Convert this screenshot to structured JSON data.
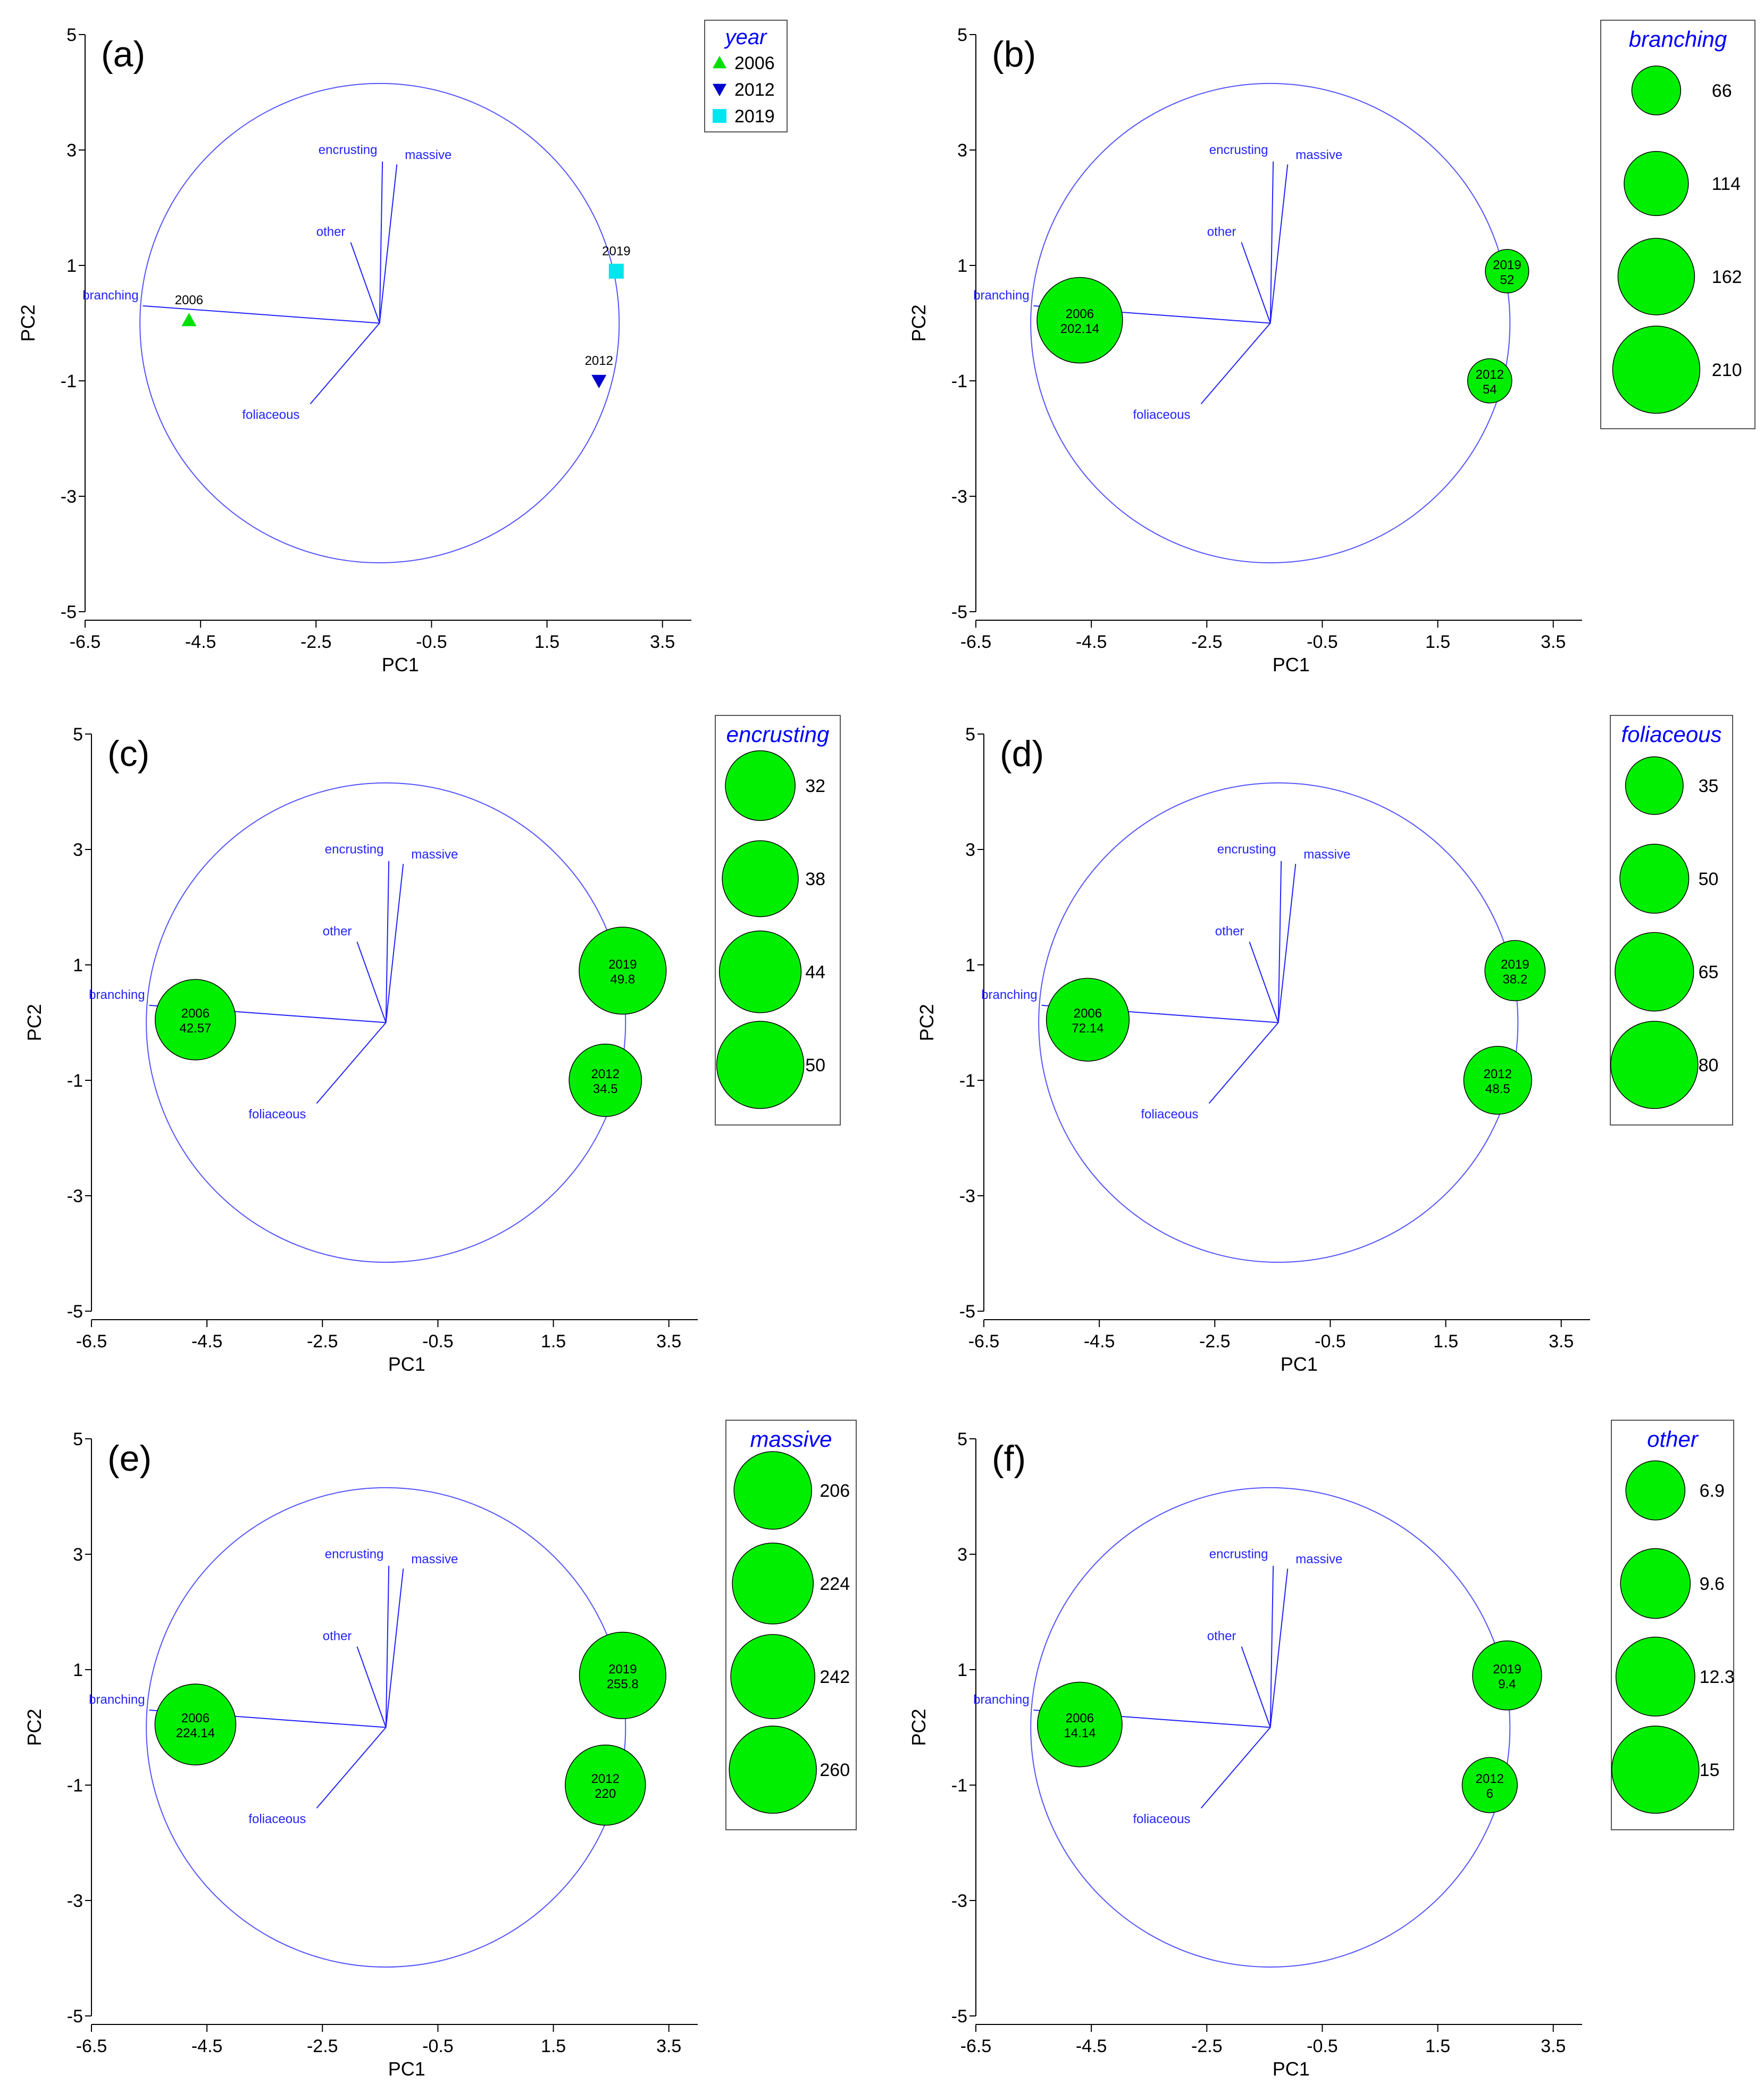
{
  "colors": {
    "vector": "#2323ff",
    "circle": "#5555ff",
    "bubble_fill": "#00ee00",
    "bubble_stroke": "#000000",
    "y2006": "#00e000",
    "y2012": "#0000cc",
    "y2019": "#00e5ee",
    "legend_title": "#0000ff",
    "axis": "#000000"
  },
  "chart_data": [
    {
      "panel_label": "(a)",
      "type": "scatter",
      "xlabel": "PC1",
      "ylabel": "PC2",
      "xlim": [
        -6.5,
        4.0
      ],
      "ylim": [
        -5,
        5
      ],
      "xticks": [
        "-6.5",
        "-4.5",
        "-2.5",
        "-0.5",
        "1.5",
        "3.5"
      ],
      "yticks": [
        "5",
        "3",
        "1",
        "-1",
        "-3",
        "-5"
      ],
      "circle": {
        "cx": -1.4,
        "cy": 0,
        "r": 4.15
      },
      "vectors": [
        {
          "label": "branching",
          "x": -5.5,
          "y": 0.3
        },
        {
          "label": "encrusting",
          "x": -1.35,
          "y": 2.8
        },
        {
          "label": "massive",
          "x": -1.1,
          "y": 2.75
        },
        {
          "label": "other",
          "x": -1.9,
          "y": 1.4
        },
        {
          "label": "foliaceous",
          "x": -2.6,
          "y": -1.4
        }
      ],
      "legend": {
        "title": "year",
        "entries": [
          {
            "label": "2006",
            "marker": "triangle-up",
            "color": "#00e000"
          },
          {
            "label": "2012",
            "marker": "triangle-down",
            "color": "#0000cc"
          },
          {
            "label": "2019",
            "marker": "square",
            "color": "#00e5ee"
          }
        ]
      },
      "points": [
        {
          "year": "2006",
          "x": -4.7,
          "y": 0.05
        },
        {
          "year": "2012",
          "x": 2.4,
          "y": -1.0
        },
        {
          "year": "2019",
          "x": 2.7,
          "y": 0.9
        }
      ]
    },
    {
      "panel_label": "(b)",
      "type": "bubble",
      "xlabel": "PC1",
      "ylabel": "PC2",
      "xlim": [
        -6.5,
        4.0
      ],
      "ylim": [
        -5,
        5
      ],
      "xticks": [
        "-6.5",
        "-4.5",
        "-2.5",
        "-0.5",
        "1.5",
        "3.5"
      ],
      "yticks": [
        "5",
        "3",
        "1",
        "-1",
        "-3",
        "-5"
      ],
      "circle": {
        "cx": -1.4,
        "cy": 0,
        "r": 4.15
      },
      "vectors": [
        {
          "label": "branching",
          "x": -5.5,
          "y": 0.3
        },
        {
          "label": "encrusting",
          "x": -1.35,
          "y": 2.8
        },
        {
          "label": "massive",
          "x": -1.1,
          "y": 2.75
        },
        {
          "label": "other",
          "x": -1.9,
          "y": 1.4
        },
        {
          "label": "foliaceous",
          "x": -2.6,
          "y": -1.4
        }
      ],
      "variable": "branching",
      "legend_values": [
        "66",
        "114",
        "162",
        "210"
      ],
      "max_value": 210,
      "points": [
        {
          "year": "2006",
          "x": -4.7,
          "y": 0.05,
          "value": "202.14"
        },
        {
          "year": "2012",
          "x": 2.4,
          "y": -1.0,
          "value": "54"
        },
        {
          "year": "2019",
          "x": 2.7,
          "y": 0.9,
          "value": "52"
        }
      ]
    },
    {
      "panel_label": "(c)",
      "type": "bubble",
      "xlabel": "PC1",
      "ylabel": "PC2",
      "xlim": [
        -6.5,
        4.0
      ],
      "ylim": [
        -5,
        5
      ],
      "xticks": [
        "-6.5",
        "-4.5",
        "-2.5",
        "-0.5",
        "1.5",
        "3.5"
      ],
      "yticks": [
        "5",
        "3",
        "1",
        "-1",
        "-3",
        "-5"
      ],
      "circle": {
        "cx": -1.4,
        "cy": 0,
        "r": 4.15
      },
      "vectors": [
        {
          "label": "branching",
          "x": -5.5,
          "y": 0.3
        },
        {
          "label": "encrusting",
          "x": -1.35,
          "y": 2.8
        },
        {
          "label": "massive",
          "x": -1.1,
          "y": 2.75
        },
        {
          "label": "other",
          "x": -1.9,
          "y": 1.4
        },
        {
          "label": "foliaceous",
          "x": -2.6,
          "y": -1.4
        }
      ],
      "variable": "encrusting",
      "legend_values": [
        "32",
        "38",
        "44",
        "50"
      ],
      "max_value": 50,
      "points": [
        {
          "year": "2006",
          "x": -4.7,
          "y": 0.05,
          "value": "42.57"
        },
        {
          "year": "2012",
          "x": 2.4,
          "y": -1.0,
          "value": "34.5"
        },
        {
          "year": "2019",
          "x": 2.7,
          "y": 0.9,
          "value": "49.8"
        }
      ]
    },
    {
      "panel_label": "(d)",
      "type": "bubble",
      "xlabel": "PC1",
      "ylabel": "PC2",
      "xlim": [
        -6.5,
        4.0
      ],
      "ylim": [
        -5,
        5
      ],
      "xticks": [
        "-6.5",
        "-4.5",
        "-2.5",
        "-0.5",
        "1.5",
        "3.5"
      ],
      "yticks": [
        "5",
        "3",
        "1",
        "-1",
        "-3",
        "-5"
      ],
      "circle": {
        "cx": -1.4,
        "cy": 0,
        "r": 4.15
      },
      "vectors": [
        {
          "label": "branching",
          "x": -5.5,
          "y": 0.3
        },
        {
          "label": "encrusting",
          "x": -1.35,
          "y": 2.8
        },
        {
          "label": "massive",
          "x": -1.1,
          "y": 2.75
        },
        {
          "label": "other",
          "x": -1.9,
          "y": 1.4
        },
        {
          "label": "foliaceous",
          "x": -2.6,
          "y": -1.4
        }
      ],
      "variable": "foliaceous",
      "legend_values": [
        "35",
        "50",
        "65",
        "80"
      ],
      "max_value": 80,
      "points": [
        {
          "year": "2006",
          "x": -4.7,
          "y": 0.05,
          "value": "72.14"
        },
        {
          "year": "2012",
          "x": 2.4,
          "y": -1.0,
          "value": "48.5"
        },
        {
          "year": "2019",
          "x": 2.7,
          "y": 0.9,
          "value": "38.2"
        }
      ]
    },
    {
      "panel_label": "(e)",
      "type": "bubble",
      "xlabel": "PC1",
      "ylabel": "PC2",
      "xlim": [
        -6.5,
        4.0
      ],
      "ylim": [
        -5,
        5
      ],
      "xticks": [
        "-6.5",
        "-4.5",
        "-2.5",
        "-0.5",
        "1.5",
        "3.5"
      ],
      "yticks": [
        "5",
        "3",
        "1",
        "-1",
        "-3",
        "-5"
      ],
      "circle": {
        "cx": -1.4,
        "cy": 0,
        "r": 4.15
      },
      "vectors": [
        {
          "label": "branching",
          "x": -5.5,
          "y": 0.3
        },
        {
          "label": "encrusting",
          "x": -1.35,
          "y": 2.8
        },
        {
          "label": "massive",
          "x": -1.1,
          "y": 2.75
        },
        {
          "label": "other",
          "x": -1.9,
          "y": 1.4
        },
        {
          "label": "foliaceous",
          "x": -2.6,
          "y": -1.4
        }
      ],
      "variable": "massive",
      "legend_values": [
        "206",
        "224",
        "242",
        "260"
      ],
      "max_value": 260,
      "points": [
        {
          "year": "2006",
          "x": -4.7,
          "y": 0.05,
          "value": "224.14"
        },
        {
          "year": "2012",
          "x": 2.4,
          "y": -1.0,
          "value": "220"
        },
        {
          "year": "2019",
          "x": 2.7,
          "y": 0.9,
          "value": "255.8"
        }
      ]
    },
    {
      "panel_label": "(f)",
      "type": "bubble",
      "xlabel": "PC1",
      "ylabel": "PC2",
      "xlim": [
        -6.5,
        4.0
      ],
      "ylim": [
        -5,
        5
      ],
      "xticks": [
        "-6.5",
        "-4.5",
        "-2.5",
        "-0.5",
        "1.5",
        "3.5"
      ],
      "yticks": [
        "5",
        "3",
        "1",
        "-1",
        "-3",
        "-5"
      ],
      "circle": {
        "cx": -1.4,
        "cy": 0,
        "r": 4.15
      },
      "vectors": [
        {
          "label": "branching",
          "x": -5.5,
          "y": 0.3
        },
        {
          "label": "encrusting",
          "x": -1.35,
          "y": 2.8
        },
        {
          "label": "massive",
          "x": -1.1,
          "y": 2.75
        },
        {
          "label": "other",
          "x": -1.9,
          "y": 1.4
        },
        {
          "label": "foliaceous",
          "x": -2.6,
          "y": -1.4
        }
      ],
      "variable": "other",
      "legend_values": [
        "6.9",
        "9.6",
        "12.3",
        "15"
      ],
      "max_value": 15,
      "points": [
        {
          "year": "2006",
          "x": -4.7,
          "y": 0.05,
          "value": "14.14"
        },
        {
          "year": "2012",
          "x": 2.4,
          "y": -1.0,
          "value": "6"
        },
        {
          "year": "2019",
          "x": 2.7,
          "y": 0.9,
          "value": "9.4"
        }
      ]
    }
  ]
}
